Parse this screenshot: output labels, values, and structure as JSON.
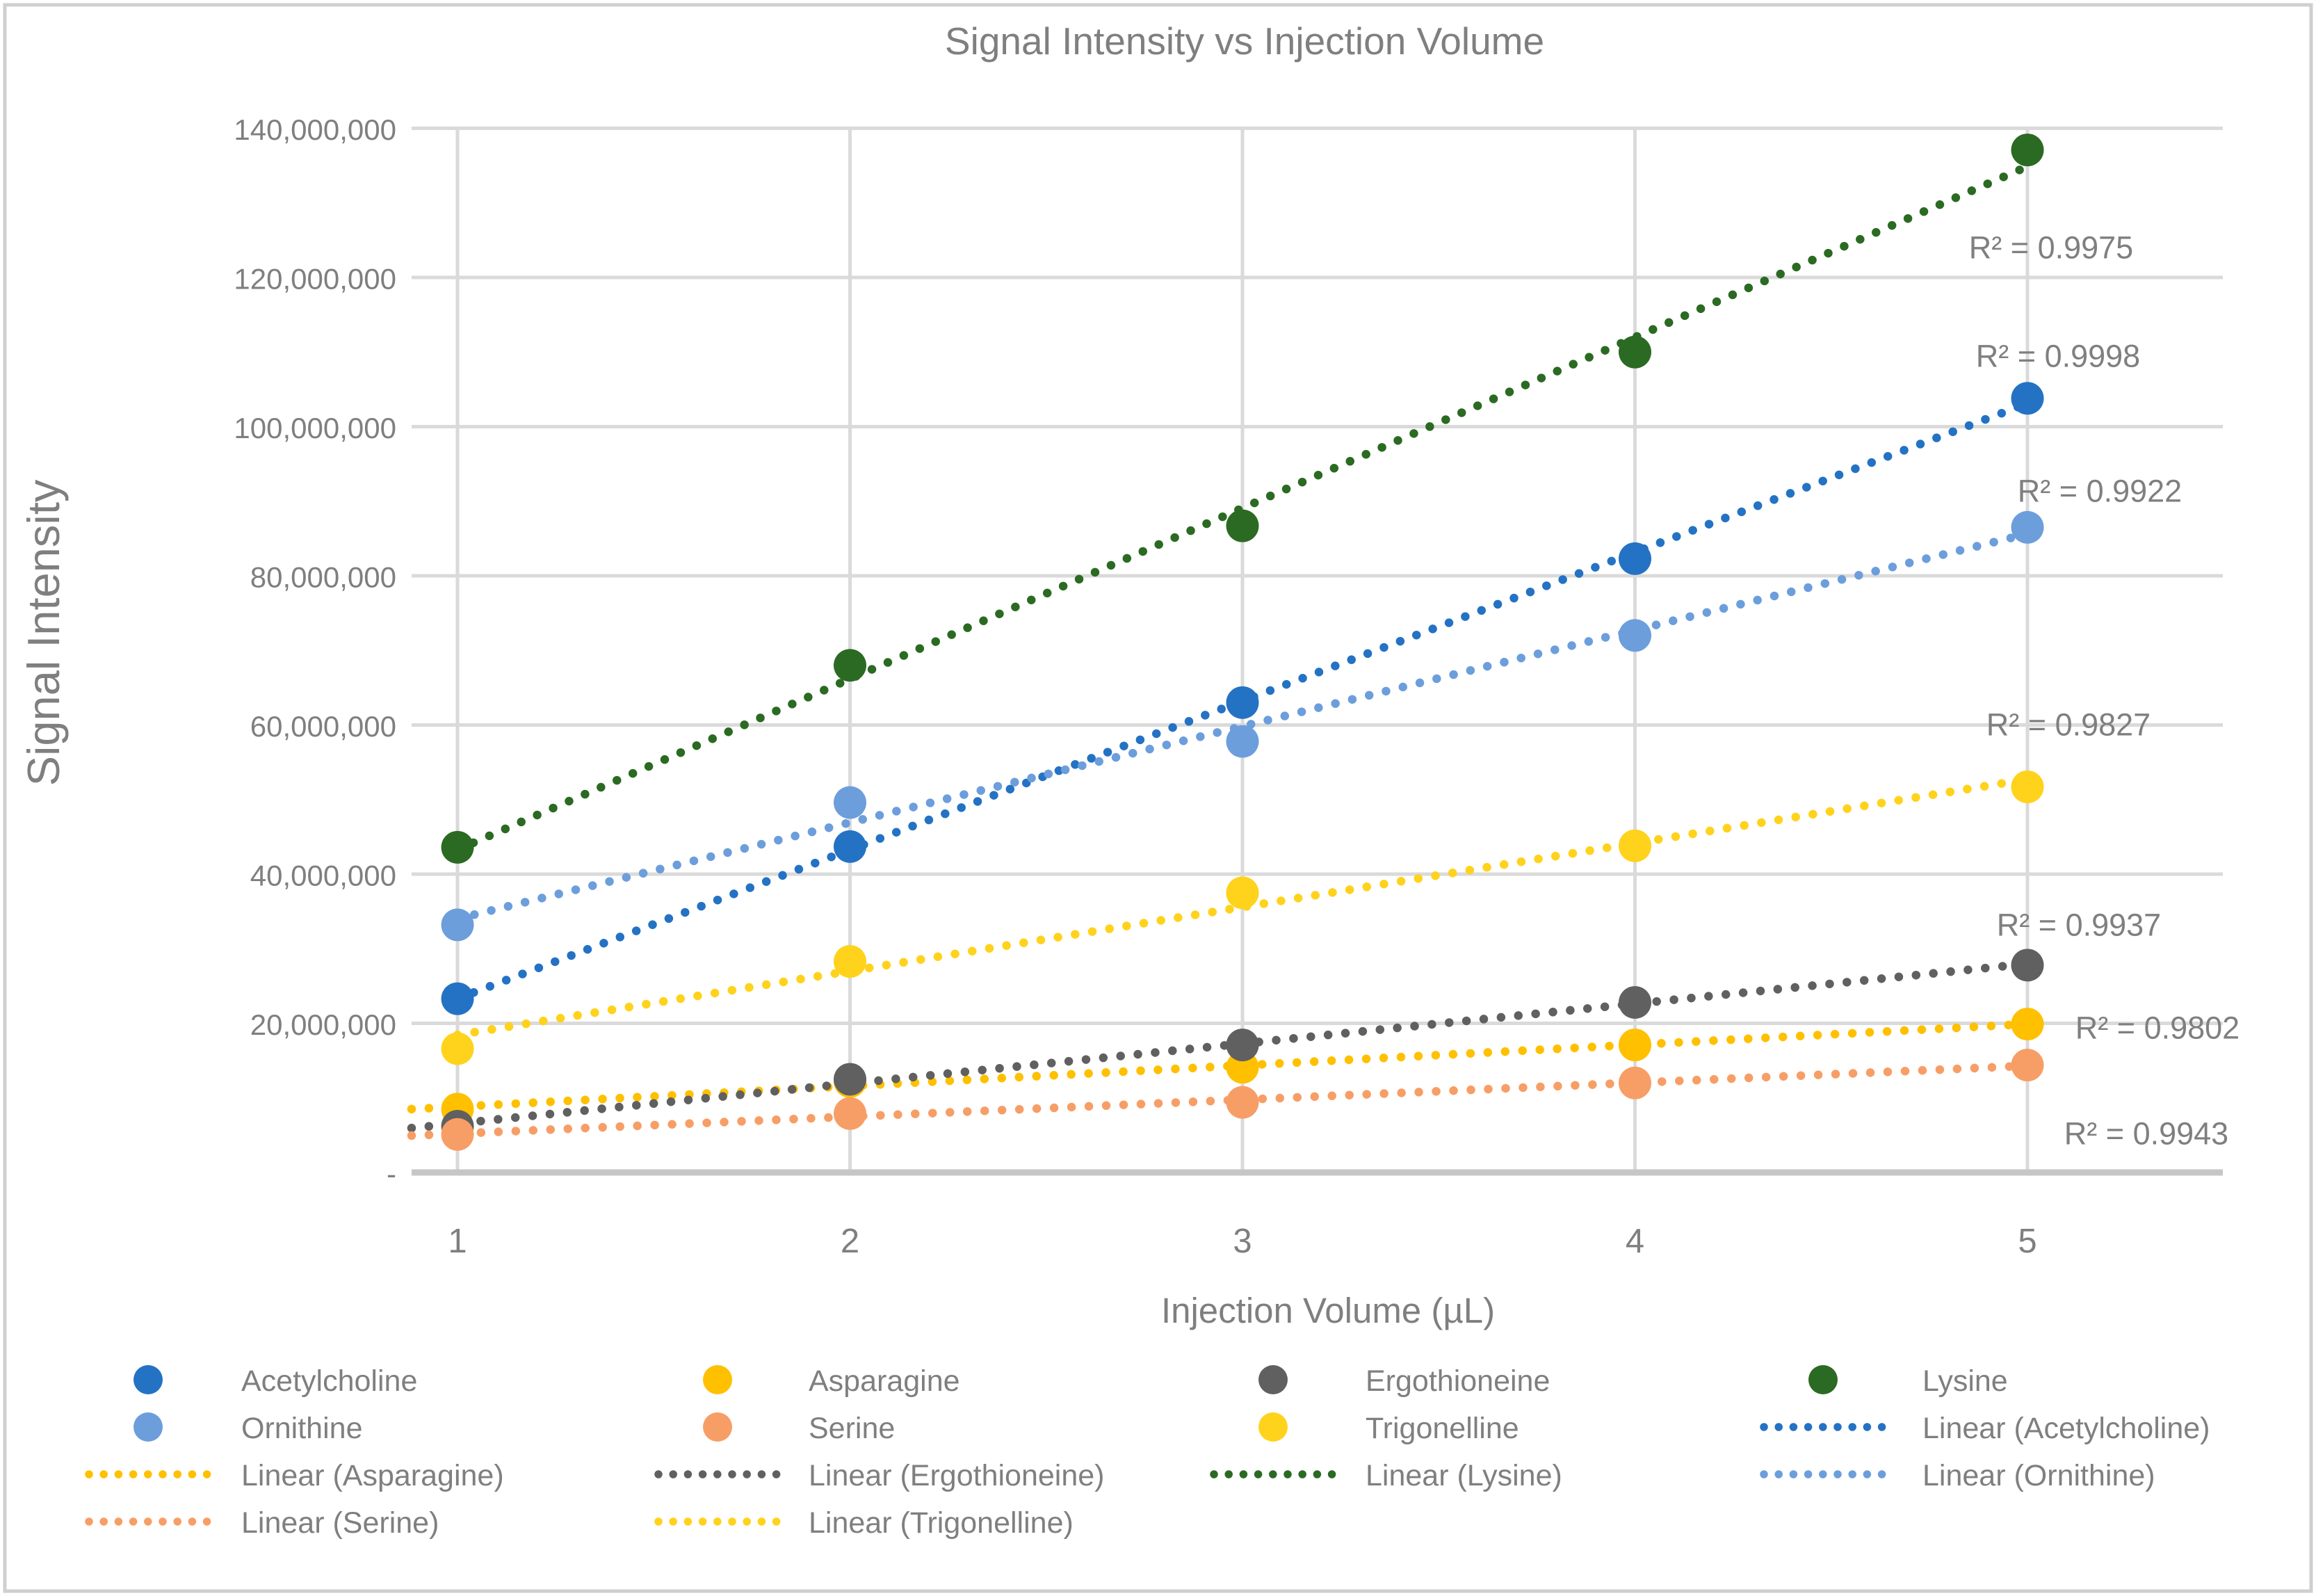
{
  "chart": {
    "title": "Signal Intensity vs Injection Volume",
    "x_axis_title": "Injection Volume (µL)",
    "y_axis_title": "Signal Intensity"
  },
  "chart_data": {
    "type": "scatter",
    "title": "Signal Intensity vs Injection Volume",
    "xlabel": "Injection Volume (µL)",
    "ylabel": "Signal Intensity",
    "x": [
      1,
      2,
      3,
      4,
      5
    ],
    "x_tick_labels": [
      "1",
      "2",
      "3",
      "4",
      "5"
    ],
    "y_tick_labels": [
      "-",
      "20,000,000",
      "40,000,000",
      "60,000,000",
      "80,000,000",
      "100,000,000",
      "120,000,000",
      "140,000,000"
    ],
    "ylim": [
      0,
      140000000
    ],
    "y_major_unit": 20000000,
    "grid": true,
    "legend_position": "bottom",
    "series": [
      {
        "name": "Acetylcholine",
        "color": "#2472C4",
        "values": [
          23300000,
          43700000,
          63000000,
          82300000,
          103800000
        ],
        "r2_label": "R² = 0.9998",
        "r2_pos": [
          2960,
          512
        ],
        "trend": {
          "x": [
            1,
            5
          ],
          "v": [
            23310000,
            103110000
          ]
        }
      },
      {
        "name": "Asparagine",
        "color": "#FFC000",
        "values": [
          8500000,
          12200000,
          14100000,
          17100000,
          19900000
        ],
        "r2_label": "R² = 0.9802",
        "r2_pos": [
          3103,
          1478
        ],
        "trend": {
          "x": [
            0.883,
            5
          ],
          "v": [
            8500000,
            19900000
          ]
        }
      },
      {
        "name": "Ergothioneine",
        "color": "#606060",
        "values": [
          6200000,
          12500000,
          17100000,
          22800000,
          27800000
        ],
        "r2_label": "R² = 0.9937",
        "r2_pos": [
          2990,
          1330
        ],
        "trend": {
          "x": [
            0.883,
            5
          ],
          "v": [
            5950000,
            27980000
          ]
        }
      },
      {
        "name": "Lysine",
        "color": "#2B6A22",
        "values": [
          43600000,
          68000000,
          86700000,
          110000000,
          137100000
        ],
        "r2_label": "R² = 0.9975",
        "r2_pos": [
          2950,
          356
        ],
        "trend": {
          "x": [
            1,
            5
          ],
          "v": [
            43280000,
            134880000
          ]
        }
      },
      {
        "name": "Ornithine",
        "color": "#6C9EDC",
        "values": [
          33200000,
          49600000,
          57800000,
          72000000,
          86500000
        ],
        "r2_label": "R² = 0.9922",
        "r2_pos": [
          3020,
          706
        ],
        "trend": {
          "x": [
            1,
            5
          ],
          "v": [
            34020000,
            85620000
          ]
        }
      },
      {
        "name": "Serine",
        "color": "#F79E66",
        "values": [
          5100000,
          7900000,
          9400000,
          12000000,
          14400000
        ],
        "r2_label": "R² = 0.9943",
        "r2_pos": [
          3087,
          1630
        ],
        "trend": {
          "x": [
            0.883,
            5
          ],
          "v": [
            4950000,
            14300000
          ]
        }
      },
      {
        "name": "Trigonelline",
        "color": "#FFD21C",
        "values": [
          16600000,
          28300000,
          37500000,
          43800000,
          51700000
        ],
        "r2_label": "R² = 0.9827",
        "r2_pos": [
          2975,
          1042
        ],
        "trend": {
          "x": [
            1,
            5
          ],
          "v": [
            18440000,
            52720000
          ]
        }
      }
    ]
  },
  "legend": {
    "rows": [
      [
        {
          "label": "Acetylcholine",
          "series": "Acetylcholine",
          "swatch": "marker"
        },
        {
          "label": "Asparagine",
          "series": "Asparagine",
          "swatch": "marker"
        },
        {
          "label": "Ergothioneine",
          "series": "Ergothioneine",
          "swatch": "marker"
        },
        {
          "label": "Lysine",
          "series": "Lysine",
          "swatch": "marker"
        }
      ],
      [
        {
          "label": "Ornithine",
          "series": "Ornithine",
          "swatch": "marker"
        },
        {
          "label": "Serine",
          "series": "Serine",
          "swatch": "marker"
        },
        {
          "label": "Trigonelline",
          "series": "Trigonelline",
          "swatch": "marker"
        },
        {
          "label": "Linear (Acetylcholine)",
          "series": "Acetylcholine",
          "swatch": "dotted"
        }
      ],
      [
        {
          "label": "Linear (Asparagine)",
          "series": "Asparagine",
          "swatch": "dotted"
        },
        {
          "label": "Linear (Ergothioneine)",
          "series": "Ergothioneine",
          "swatch": "dotted"
        },
        {
          "label": "Linear (Lysine)",
          "series": "Lysine",
          "swatch": "dotted"
        },
        {
          "label": "Linear (Ornithine)",
          "series": "Ornithine",
          "swatch": "dotted"
        }
      ],
      [
        {
          "label": "Linear (Serine)",
          "series": "Serine",
          "swatch": "dotted"
        },
        {
          "label": "Linear (Trigonelline)",
          "series": "Trigonelline",
          "swatch": "dotted"
        }
      ]
    ]
  },
  "colors": {
    "gridline": "#DADADA",
    "axis_line": "#C6C6C6",
    "text": "#7F7F7F",
    "border": "#CFCFCF"
  }
}
